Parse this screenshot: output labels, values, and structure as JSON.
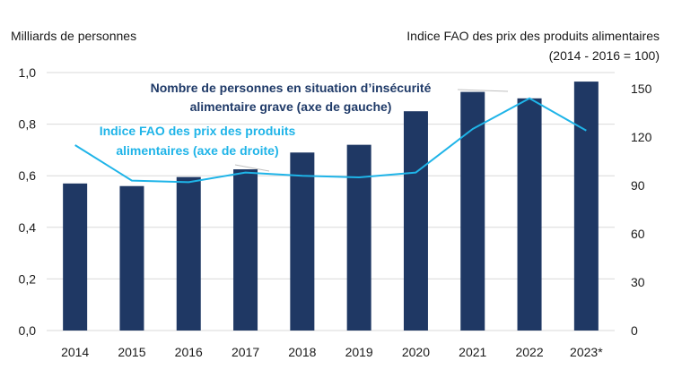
{
  "chart_data": {
    "type": "bar",
    "categories": [
      "2014",
      "2015",
      "2016",
      "2017",
      "2018",
      "2019",
      "2020",
      "2021",
      "2022",
      "2023*"
    ],
    "series": [
      {
        "name": "Nombre de personnes en situation d’insécurité alimentaire grave (axe de gauche)",
        "type": "bar",
        "axis": "left",
        "color": "#1f3864",
        "values": [
          0.57,
          0.56,
          0.595,
          0.625,
          0.69,
          0.72,
          0.85,
          0.925,
          0.9,
          0.965
        ]
      },
      {
        "name": "Indice FAO des prix des produits alimentaires (axe de droite)",
        "type": "line",
        "axis": "right",
        "color": "#1fb4e8",
        "values": [
          115,
          93,
          92,
          98,
          96,
          95,
          98,
          125,
          144,
          124
        ]
      }
    ],
    "y_left": {
      "label": "Milliards de personnes",
      "min": 0,
      "max": 1.0,
      "ticks": [
        "0,0",
        "0,2",
        "0,4",
        "0,6",
        "0,8",
        "1,0"
      ]
    },
    "y_right": {
      "label_line1": "Indice FAO des prix des produits alimentaires",
      "label_line2": "(2014 - 2016 = 100)",
      "min": 0,
      "max": 160,
      "ticks": [
        "0",
        "30",
        "60",
        "90",
        "120",
        "150"
      ]
    },
    "annotations": {
      "bar_label_line1": "Nombre de personnes en situation d’insécurité",
      "bar_label_line2": "alimentaire grave (axe de gauche)",
      "line_label_line1": "Indice FAO des prix des produits",
      "line_label_line2": "alimentaires (axe de droite)"
    },
    "grid": true,
    "colors": {
      "bar": "#1f3864",
      "line": "#1fb4e8",
      "grid": "#d9d9d9"
    }
  }
}
